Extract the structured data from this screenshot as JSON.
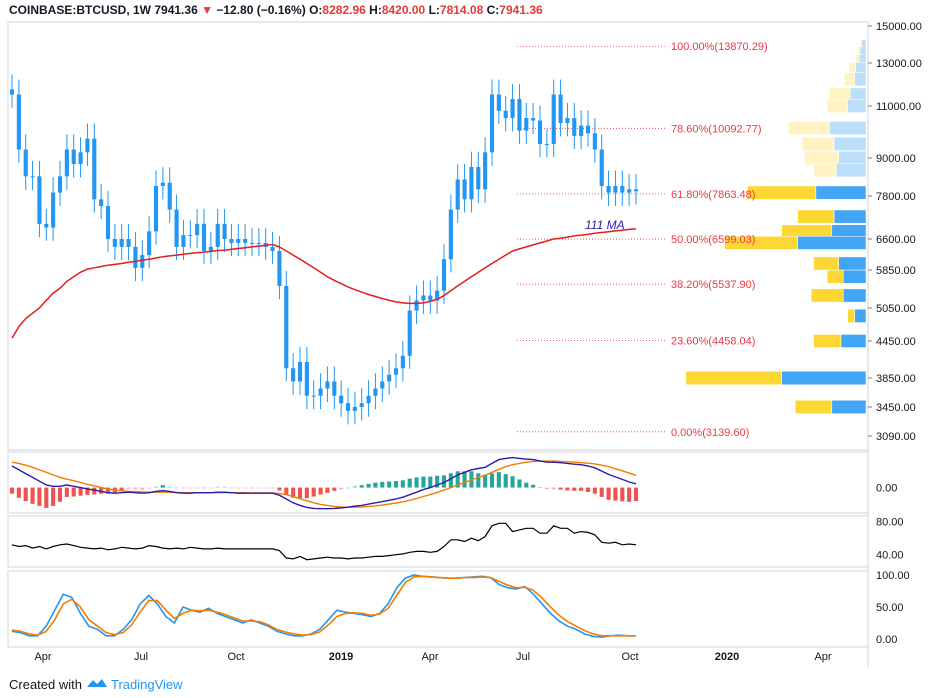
{
  "header": {
    "symbol": "COINBASE:BTCUSD, 1W",
    "last": "7941.36",
    "arrow": "▼",
    "change": "−12.80 (−0.16%)",
    "o_label": "O:",
    "o": "8282.96",
    "h_label": "H:",
    "h": "8420.00",
    "l_label": "L:",
    "l": "7814.08",
    "c_label": "C:",
    "c": "7941.36"
  },
  "footer": {
    "created_with": "Created with",
    "brand": "TradingView"
  },
  "colors": {
    "up": "#2196f3",
    "down": "#2196f3",
    "ma": "#e01f1f",
    "fib": "#f23645",
    "vp_up": "#42a5f5",
    "vp_down": "#fdd835",
    "macd": "#2b1ca8",
    "signal": "#f57c00",
    "hist_pos": "#26a69a",
    "hist_pos_light": "#b2dfdb",
    "hist_neg": "#ef5350",
    "hist_neg_light": "#f8bbd0",
    "rsi": "#000000",
    "stoch_k": "#2196f3",
    "stoch_d": "#f57c00"
  },
  "chart_data": [
    {
      "type": "candlestick",
      "title": "COINBASE:BTCUSD, 1W",
      "price_axis": [
        "15000.00",
        "13000.00",
        "11000.00",
        "9000.00",
        "7800.00",
        "6600.00",
        "5850.00",
        "5050.00",
        "4450.00",
        "3850.00",
        "3450.00",
        "3090.00"
      ],
      "time_axis": [
        "Apr",
        "Jul",
        "Oct",
        "2019",
        "Apr",
        "Jul",
        "Oct",
        "2020",
        "Apr"
      ],
      "last_price": 7941.36,
      "ma_label": "111 MA",
      "fib_levels": [
        {
          "label": "100.00%(13870.29)",
          "value": 13870.29
        },
        {
          "label": "78.60%(10092.77)",
          "value": 10092.77
        },
        {
          "label": "61.80%(7863.48)",
          "value": 7863.48
        },
        {
          "label": "50.00%(6599.03)",
          "value": 6599.03
        },
        {
          "label": "38.20%(5537.90)",
          "value": 5537.9
        },
        {
          "label": "23.60%(4458.04)",
          "value": 4458.04
        },
        {
          "label": "0.00%(3139.60)",
          "value": 3139.6
        }
      ],
      "candles_close": [
        11500,
        9300,
        8400,
        8400,
        7000,
        6900,
        7900,
        8400,
        9300,
        8800,
        9200,
        9700,
        7700,
        7500,
        6600,
        6400,
        6600,
        6400,
        5900,
        6200,
        6800,
        8100,
        8200,
        7400,
        6400,
        6700,
        6700,
        7000,
        6300,
        6400,
        7000,
        6600,
        6500,
        6600,
        6500,
        6500,
        6500,
        6400,
        6300,
        5500,
        4000,
        3800,
        4100,
        3600,
        3600,
        3700,
        3800,
        3600,
        3500,
        3400,
        3450,
        3500,
        3600,
        3700,
        3800,
        3900,
        4000,
        4200,
        5000,
        5200,
        5300,
        5200,
        5400,
        6100,
        7400,
        8300,
        7700,
        8700,
        8000,
        9200,
        11500,
        10800,
        10500,
        11300,
        10000,
        10500,
        10400,
        9500,
        9500,
        11500,
        10300,
        10500,
        9800,
        10200,
        9900,
        9300,
        8100,
        7900,
        8100,
        7900,
        8000,
        7941
      ],
      "ma_values": [
        4500,
        4700,
        4850,
        4950,
        5050,
        5200,
        5350,
        5450,
        5600,
        5700,
        5800,
        5870,
        5900,
        5930,
        5960,
        5980,
        6000,
        6030,
        6050,
        6080,
        6100,
        6130,
        6160,
        6180,
        6200,
        6220,
        6240,
        6260,
        6270,
        6290,
        6310,
        6320,
        6340,
        6360,
        6380,
        6400,
        6420,
        6440,
        6460,
        6400,
        6300,
        6200,
        6100,
        6000,
        5900,
        5800,
        5700,
        5620,
        5550,
        5480,
        5420,
        5370,
        5320,
        5280,
        5240,
        5200,
        5170,
        5150,
        5140,
        5140,
        5150,
        5180,
        5220,
        5300,
        5400,
        5500,
        5600,
        5700,
        5800,
        5900,
        6000,
        6100,
        6200,
        6300,
        6350,
        6400,
        6450,
        6500,
        6550,
        6600,
        6620,
        6650,
        6680,
        6700,
        6720,
        6750,
        6770,
        6790,
        6810,
        6830,
        6850,
        6870
      ],
      "volume_profile": [
        {
          "price": 13870,
          "up": 0.02,
          "down": 0.005
        },
        {
          "price": 13500,
          "up": 0.025,
          "down": 0.01
        },
        {
          "price": 13100,
          "up": 0.03,
          "down": 0.015
        },
        {
          "price": 12700,
          "up": 0.045,
          "down": 0.03
        },
        {
          "price": 12200,
          "up": 0.05,
          "down": 0.045
        },
        {
          "price": 11500,
          "up": 0.07,
          "down": 0.09
        },
        {
          "price": 11000,
          "up": 0.08,
          "down": 0.09
        },
        {
          "price": 10100,
          "up": 0.16,
          "down": 0.18
        },
        {
          "price": 9500,
          "up": 0.14,
          "down": 0.14
        },
        {
          "price": 9000,
          "up": 0.12,
          "down": 0.15
        },
        {
          "price": 8600,
          "up": 0.13,
          "down": 0.1
        },
        {
          "price": 7900,
          "up": 0.22,
          "down": 0.3
        },
        {
          "price": 7200,
          "up": 0.14,
          "down": 0.16
        },
        {
          "price": 6800,
          "up": 0.15,
          "down": 0.22
        },
        {
          "price": 6500,
          "up": 0.3,
          "down": 0.32
        },
        {
          "price": 6000,
          "up": 0.12,
          "down": 0.11
        },
        {
          "price": 5700,
          "up": 0.1,
          "down": 0.07
        },
        {
          "price": 5300,
          "up": 0.1,
          "down": 0.14
        },
        {
          "price": 4900,
          "up": 0.05,
          "down": 0.03
        },
        {
          "price": 4450,
          "up": 0.11,
          "down": 0.12
        },
        {
          "price": 3850,
          "up": 0.37,
          "down": 0.42
        },
        {
          "price": 3450,
          "up": 0.15,
          "down": 0.16
        }
      ]
    },
    {
      "type": "line",
      "name_panel": "MACD",
      "y_axis": [
        "0.00"
      ],
      "macd": [
        0.85,
        0.7,
        0.55,
        0.4,
        0.25,
        0.1,
        0.05,
        0.05,
        0.1,
        0.05,
        0.0,
        -0.05,
        -0.1,
        -0.15,
        -0.2,
        -0.22,
        -0.2,
        -0.18,
        -0.2,
        -0.22,
        -0.2,
        -0.15,
        -0.12,
        -0.15,
        -0.2,
        -0.22,
        -0.22,
        -0.2,
        -0.2,
        -0.2,
        -0.18,
        -0.18,
        -0.2,
        -0.22,
        -0.22,
        -0.22,
        -0.22,
        -0.22,
        -0.22,
        -0.3,
        -0.45,
        -0.6,
        -0.7,
        -0.78,
        -0.82,
        -0.83,
        -0.83,
        -0.82,
        -0.8,
        -0.77,
        -0.73,
        -0.7,
        -0.65,
        -0.6,
        -0.55,
        -0.5,
        -0.45,
        -0.38,
        -0.28,
        -0.18,
        -0.08,
        0.0,
        0.1,
        0.2,
        0.35,
        0.5,
        0.6,
        0.7,
        0.75,
        0.8,
        0.95,
        1.1,
        1.15,
        1.18,
        1.15,
        1.12,
        1.1,
        1.05,
        1.0,
        1.0,
        0.98,
        0.95,
        0.92,
        0.9,
        0.85,
        0.78,
        0.65,
        0.52,
        0.42,
        0.32,
        0.22,
        0.15
      ],
      "signal": [
        1.0,
        0.95,
        0.88,
        0.8,
        0.7,
        0.6,
        0.5,
        0.4,
        0.33,
        0.27,
        0.2,
        0.13,
        0.07,
        0.0,
        -0.05,
        -0.1,
        -0.13,
        -0.15,
        -0.16,
        -0.17,
        -0.18,
        -0.18,
        -0.18,
        -0.18,
        -0.19,
        -0.2,
        -0.2,
        -0.2,
        -0.2,
        -0.2,
        -0.2,
        -0.2,
        -0.2,
        -0.2,
        -0.2,
        -0.21,
        -0.21,
        -0.21,
        -0.21,
        -0.23,
        -0.28,
        -0.35,
        -0.44,
        -0.52,
        -0.6,
        -0.66,
        -0.7,
        -0.74,
        -0.76,
        -0.77,
        -0.77,
        -0.76,
        -0.74,
        -0.72,
        -0.69,
        -0.65,
        -0.61,
        -0.56,
        -0.5,
        -0.43,
        -0.35,
        -0.27,
        -0.19,
        -0.1,
        0.0,
        0.1,
        0.2,
        0.3,
        0.4,
        0.48,
        0.6,
        0.72,
        0.82,
        0.9,
        0.95,
        1.0,
        1.03,
        1.04,
        1.04,
        1.04,
        1.03,
        1.02,
        1.0,
        0.98,
        0.96,
        0.93,
        0.88,
        0.82,
        0.74,
        0.66,
        0.57,
        0.48
      ]
    },
    {
      "type": "line",
      "name_panel": "RSI",
      "y_axis": [
        "80.00",
        "40.00"
      ],
      "values": [
        52,
        50,
        51,
        48,
        50,
        47,
        50,
        52,
        53,
        51,
        49,
        48,
        47,
        48,
        46,
        47,
        49,
        48,
        47,
        48,
        51,
        50,
        48,
        47,
        48,
        47,
        49,
        48,
        47,
        47,
        48,
        47,
        47,
        47,
        47,
        47,
        47,
        47,
        47,
        45,
        36,
        35,
        38,
        34,
        35,
        36,
        37,
        36,
        36,
        35,
        36,
        36,
        37,
        38,
        38,
        39,
        40,
        41,
        43,
        44,
        44,
        43,
        44,
        50,
        58,
        58,
        56,
        60,
        57,
        62,
        75,
        78,
        78,
        68,
        70,
        72,
        72,
        66,
        66,
        75,
        72,
        72,
        66,
        68,
        67,
        64,
        55,
        54,
        55,
        52,
        53,
        52
      ]
    },
    {
      "type": "line",
      "name_panel": "Stochastic RSI",
      "y_axis": [
        "100.00",
        "50.00",
        "0.00"
      ],
      "k": [
        12,
        10,
        5,
        5,
        20,
        45,
        70,
        65,
        40,
        20,
        15,
        5,
        5,
        15,
        30,
        55,
        68,
        55,
        35,
        25,
        50,
        45,
        42,
        48,
        40,
        35,
        30,
        25,
        30,
        25,
        20,
        12,
        8,
        5,
        5,
        8,
        15,
        30,
        45,
        42,
        40,
        38,
        35,
        40,
        55,
        80,
        95,
        100,
        98,
        97,
        96,
        95,
        95,
        96,
        97,
        98,
        96,
        85,
        80,
        78,
        82,
        70,
        55,
        40,
        28,
        20,
        15,
        8,
        4,
        3,
        5,
        6,
        5,
        5
      ],
      "d": [
        14,
        12,
        8,
        6,
        12,
        30,
        55,
        62,
        50,
        30,
        20,
        10,
        7,
        10,
        22,
        42,
        60,
        60,
        45,
        32,
        40,
        45,
        44,
        45,
        42,
        38,
        33,
        28,
        28,
        27,
        22,
        15,
        11,
        8,
        6,
        7,
        11,
        22,
        35,
        40,
        41,
        40,
        37,
        39,
        48,
        68,
        88,
        97,
        98,
        97,
        96,
        95,
        95,
        96,
        96,
        97,
        96,
        90,
        84,
        80,
        81,
        76,
        64,
        50,
        37,
        27,
        20,
        13,
        8,
        5,
        5,
        5,
        5,
        5
      ]
    }
  ]
}
